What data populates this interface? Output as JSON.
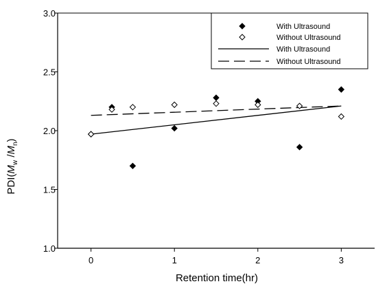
{
  "chart_data": {
    "type": "scatter",
    "xlabel": "Retention time(hr)",
    "ylabel": {
      "prefix": "PDI(",
      "mw_main": "M",
      "mw_sub": "w",
      "slash": " /",
      "mn_main": "M",
      "mn_sub": "n",
      "suffix": ")"
    },
    "xlim": [
      -0.4,
      3.4
    ],
    "ylim": [
      1.0,
      3.0
    ],
    "xticks": [
      {
        "value": 0,
        "label": "0"
      },
      {
        "value": 1,
        "label": "1"
      },
      {
        "value": 2,
        "label": "2"
      },
      {
        "value": 3,
        "label": "3"
      }
    ],
    "yticks": [
      {
        "value": 1.0,
        "label": "1.0"
      },
      {
        "value": 1.5,
        "label": "1.5"
      },
      {
        "value": 2.0,
        "label": "2.0"
      },
      {
        "value": 2.5,
        "label": "2.5"
      },
      {
        "value": 3.0,
        "label": "3.0"
      }
    ],
    "series": [
      {
        "name": "With Ultrasound",
        "kind": "scatter",
        "marker": "filled-diamond",
        "color": "#000000",
        "x": [
          0,
          0.25,
          0.5,
          1,
          1.5,
          2,
          2.5,
          3
        ],
        "y": [
          1.97,
          2.2,
          1.7,
          2.02,
          2.28,
          2.25,
          1.86,
          2.35
        ]
      },
      {
        "name": "Without Ultrasound",
        "kind": "scatter",
        "marker": "open-diamond",
        "color": "#000000",
        "x": [
          0,
          0.25,
          0.5,
          1,
          1.5,
          2,
          2.5,
          3
        ],
        "y": [
          1.97,
          2.18,
          2.2,
          2.22,
          2.23,
          2.22,
          2.21,
          2.12
        ]
      },
      {
        "name": "With Ultrasound",
        "kind": "line",
        "style": "solid",
        "color": "#000000",
        "x": [
          0,
          3
        ],
        "y": [
          1.97,
          2.21
        ]
      },
      {
        "name": "Without Ultrasound",
        "kind": "line",
        "style": "dashed",
        "color": "#000000",
        "x": [
          0,
          3
        ],
        "y": [
          2.13,
          2.21
        ]
      }
    ],
    "legend_position": "top-right",
    "grid": false
  }
}
